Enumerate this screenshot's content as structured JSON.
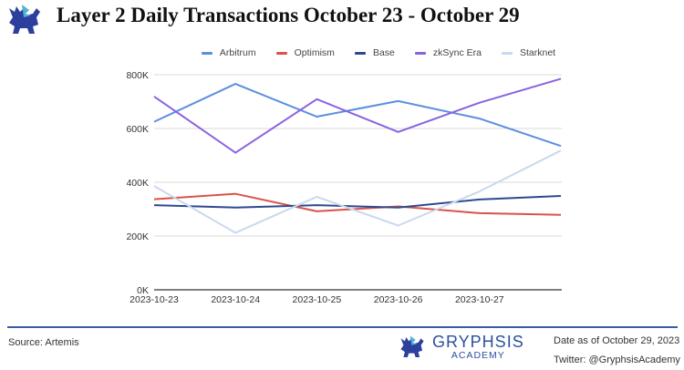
{
  "header": {
    "title": "Layer 2 Daily Transactions October 23 - October 29",
    "logo_text": "Gryphsis Academy"
  },
  "footer": {
    "source": "Source: Artemis",
    "brand_name": "GRYPHSIS",
    "brand_sub": "ACADEMY",
    "date": "Date as of October 29, 2023",
    "twitter": "Twitter: @GryphsisAcademy"
  },
  "chart_data": {
    "type": "line",
    "title": "Layer 2 Daily Transactions October 23 - October 29",
    "xlabel": "",
    "ylabel": "",
    "categories": [
      "2023-10-23",
      "2023-10-24",
      "2023-10-25",
      "2023-10-26",
      "2023-10-27",
      ""
    ],
    "ylim": [
      0,
      800000
    ],
    "yticks": [
      0,
      200000,
      400000,
      600000,
      800000
    ],
    "ytick_labels": [
      "0K",
      "200K",
      "400K",
      "600K",
      "800K"
    ],
    "grid": true,
    "legend_position": "top",
    "series": [
      {
        "name": "Arbitrum",
        "color": "#5b8fe0",
        "values": [
          625000,
          766000,
          644000,
          702000,
          637000,
          535000
        ]
      },
      {
        "name": "Optimism",
        "color": "#d9534a",
        "values": [
          337000,
          357000,
          292000,
          310000,
          285000,
          279000
        ]
      },
      {
        "name": "Base",
        "color": "#2e4a8f",
        "values": [
          315000,
          306000,
          315000,
          306000,
          336000,
          349000
        ]
      },
      {
        "name": "zkSync Era",
        "color": "#8a63e0",
        "values": [
          719000,
          510000,
          709000,
          587000,
          696000,
          785000
        ]
      },
      {
        "name": "Starknet",
        "color": "#c9d9ee",
        "values": [
          386000,
          212000,
          346000,
          239000,
          366000,
          518000
        ]
      }
    ]
  }
}
